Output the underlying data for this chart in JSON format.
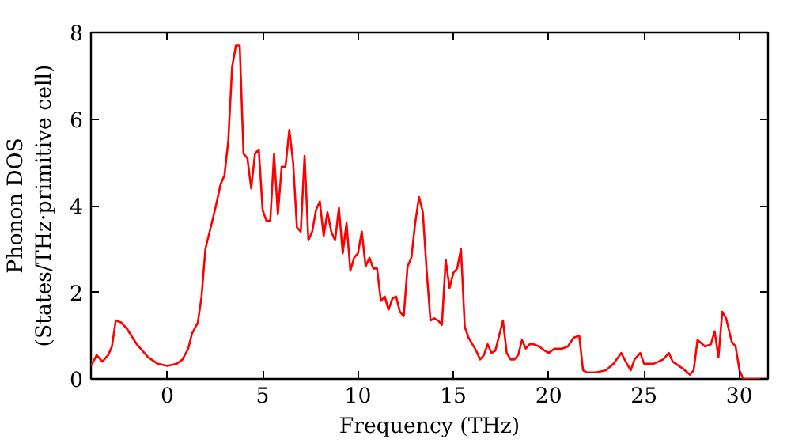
{
  "chart_data": {
    "type": "line",
    "xlabel": "Frequency (THz)",
    "ylabel": "Phonon DOS\n(States/THz·primitive cell)",
    "xlim": [
      -4.0,
      31.5
    ],
    "ylim": [
      0,
      8
    ],
    "xticks": [
      0,
      5,
      10,
      15,
      20,
      25,
      30
    ],
    "yticks": [
      0,
      2,
      4,
      6,
      8
    ],
    "grid": false,
    "marker": "none",
    "line_style": "solid",
    "series": [
      {
        "color": "#ff0000",
        "x": [
          -4.0,
          -3.7,
          -3.4,
          -3.1,
          -2.9,
          -2.7,
          -2.4,
          -2.1,
          -1.6,
          -1.0,
          -0.5,
          0,
          0.5,
          0.8,
          1.1,
          1.3,
          1.6,
          1.8,
          2.0,
          2.5,
          2.8,
          3.0,
          3.2,
          3.4,
          3.6,
          3.8,
          4.0,
          4.2,
          4.4,
          4.6,
          4.8,
          5.0,
          5.2,
          5.4,
          5.6,
          5.8,
          6.0,
          6.2,
          6.4,
          6.6,
          6.8,
          7.0,
          7.2,
          7.4,
          7.6,
          7.8,
          8.0,
          8.2,
          8.4,
          8.6,
          8.8,
          9.0,
          9.2,
          9.4,
          9.6,
          9.8,
          10.0,
          10.2,
          10.4,
          10.6,
          10.8,
          11.0,
          11.2,
          11.4,
          11.6,
          11.8,
          12.0,
          12.2,
          12.4,
          12.6,
          12.8,
          13.0,
          13.2,
          13.4,
          13.6,
          13.8,
          14.0,
          14.2,
          14.4,
          14.6,
          14.8,
          15.0,
          15.2,
          15.4,
          15.6,
          15.8,
          16.0,
          16.2,
          16.4,
          16.6,
          16.8,
          17.0,
          17.2,
          17.4,
          17.6,
          17.8,
          18.0,
          18.2,
          18.4,
          18.6,
          18.8,
          19.0,
          19.2,
          19.5,
          19.8,
          20.0,
          20.3,
          20.7,
          21.0,
          21.3,
          21.6,
          21.8,
          22.0,
          22.5,
          23.0,
          23.4,
          23.8,
          24.1,
          24.3,
          24.5,
          24.8,
          25.0,
          25.5,
          26.0,
          26.3,
          26.5,
          27.0,
          27.4,
          27.6,
          27.8,
          28.2,
          28.5,
          28.7,
          28.9,
          29.1,
          29.3,
          29.6,
          29.8,
          30.0,
          30.2,
          31.5
        ],
        "values": [
          0.3,
          0.55,
          0.4,
          0.55,
          0.75,
          1.35,
          1.3,
          1.15,
          0.8,
          0.5,
          0.35,
          0.3,
          0.35,
          0.45,
          0.7,
          1.05,
          1.3,
          1.9,
          3.0,
          3.9,
          4.5,
          4.7,
          5.5,
          7.2,
          7.7,
          7.7,
          5.2,
          5.1,
          4.4,
          5.2,
          5.3,
          3.9,
          3.65,
          3.65,
          5.2,
          3.8,
          4.9,
          4.9,
          5.75,
          5.0,
          3.5,
          3.4,
          5.15,
          3.2,
          3.4,
          3.9,
          4.1,
          3.3,
          3.85,
          3.4,
          3.2,
          3.95,
          2.9,
          3.6,
          2.5,
          2.8,
          2.9,
          3.4,
          2.6,
          2.8,
          2.55,
          2.55,
          1.8,
          1.9,
          1.6,
          1.85,
          1.9,
          1.55,
          1.45,
          2.6,
          2.8,
          3.6,
          4.2,
          3.85,
          2.5,
          1.35,
          1.4,
          1.35,
          1.25,
          2.75,
          2.1,
          2.45,
          2.55,
          3.0,
          1.2,
          0.95,
          0.8,
          0.65,
          0.45,
          0.55,
          0.8,
          0.6,
          0.65,
          1.0,
          1.35,
          0.6,
          0.45,
          0.45,
          0.55,
          0.9,
          0.7,
          0.8,
          0.8,
          0.75,
          0.65,
          0.6,
          0.7,
          0.7,
          0.75,
          0.95,
          1.0,
          0.2,
          0.15,
          0.15,
          0.2,
          0.35,
          0.6,
          0.35,
          0.2,
          0.45,
          0.6,
          0.35,
          0.35,
          0.45,
          0.6,
          0.4,
          0.25,
          0.1,
          0.2,
          0.9,
          0.75,
          0.8,
          1.1,
          0.5,
          1.55,
          1.4,
          0.85,
          0.75,
          0.2,
          0.0,
          0.0
        ]
      }
    ]
  }
}
